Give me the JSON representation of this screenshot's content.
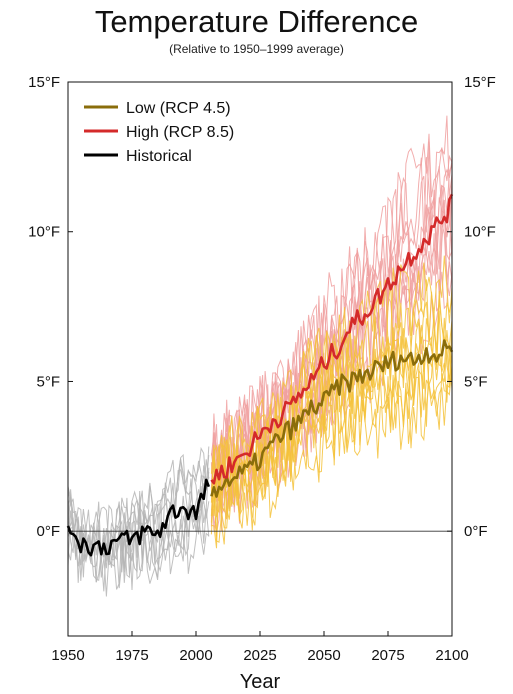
{
  "chart_data": {
    "type": "line",
    "title": "Temperature Difference",
    "subtitle": "(Relative to 1950–1999 average)",
    "xlabel": "Year",
    "ylabel": "",
    "xlim": [
      1950,
      2100
    ],
    "ylim": [
      -3.5,
      15
    ],
    "x_ticks": [
      1950,
      1975,
      2000,
      2025,
      2050,
      2075,
      2100
    ],
    "y_ticks": [
      {
        "value": 0,
        "label": "0°F"
      },
      {
        "value": 5,
        "label": "5°F"
      },
      {
        "value": 10,
        "label": "10°F"
      },
      {
        "value": 15,
        "label": "15°F"
      }
    ],
    "grid": false,
    "reference_line": 0,
    "legend_position": "top-left",
    "series": [
      {
        "name": "Low (RCP 4.5)",
        "color": "#8a6d0b",
        "ensemble_color": "#f5c23a",
        "years": [
          2006,
          2010,
          2015,
          2020,
          2025,
          2030,
          2035,
          2040,
          2045,
          2050,
          2055,
          2060,
          2065,
          2070,
          2075,
          2080,
          2085,
          2090,
          2095,
          2100
        ],
        "values": [
          1.3,
          1.6,
          1.8,
          2.0,
          2.4,
          2.9,
          3.3,
          3.6,
          4.1,
          4.3,
          4.8,
          5.0,
          5.2,
          5.4,
          5.6,
          5.8,
          5.7,
          6.0,
          5.9,
          6.2
        ]
      },
      {
        "name": "High (RCP 8.5)",
        "color": "#d42a2a",
        "ensemble_color": "#f0a0a0",
        "years": [
          2006,
          2010,
          2015,
          2020,
          2025,
          2030,
          2035,
          2040,
          2045,
          2050,
          2055,
          2060,
          2065,
          2070,
          2075,
          2080,
          2085,
          2090,
          2095,
          2100
        ],
        "values": [
          1.7,
          2.0,
          2.3,
          2.7,
          3.2,
          3.7,
          4.0,
          4.5,
          5.0,
          5.6,
          6.1,
          6.8,
          7.2,
          7.7,
          8.2,
          8.8,
          9.3,
          9.8,
          10.3,
          10.9
        ]
      },
      {
        "name": "Historical",
        "color": "#000000",
        "ensemble_color": "#b5b5b5",
        "years": [
          1950,
          1955,
          1960,
          1965,
          1970,
          1975,
          1980,
          1985,
          1990,
          1995,
          2000,
          2005
        ],
        "values": [
          0.3,
          -0.4,
          -0.5,
          -0.5,
          -0.3,
          -0.3,
          0.0,
          -0.1,
          0.6,
          0.8,
          0.6,
          1.6
        ]
      }
    ]
  }
}
